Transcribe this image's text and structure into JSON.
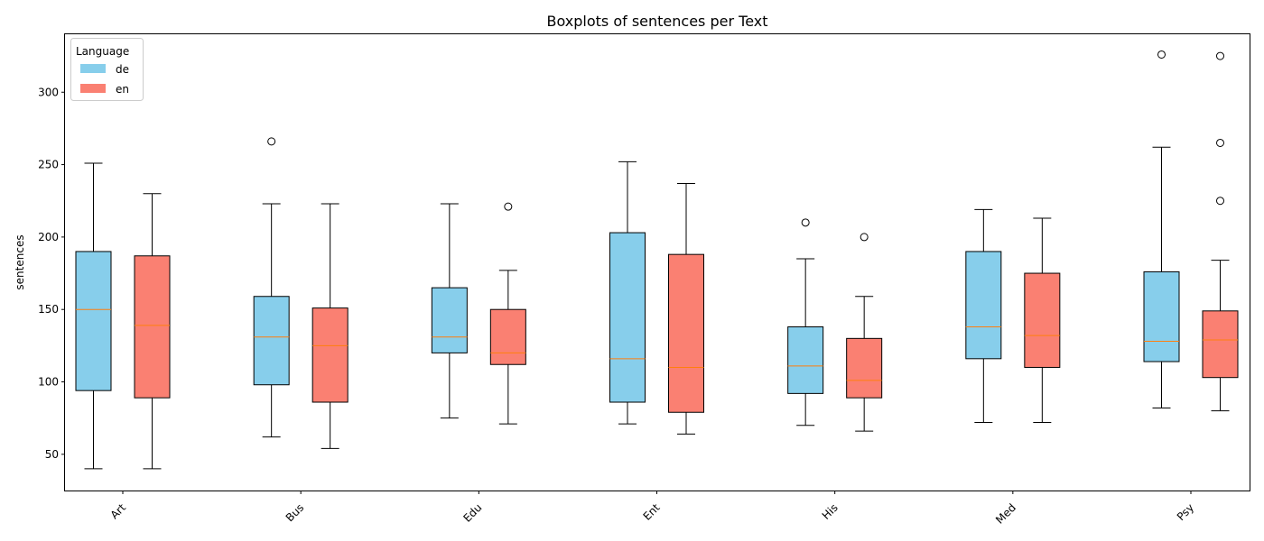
{
  "chart_data": {
    "type": "boxplot",
    "title": "Boxplots of sentences per Text",
    "xlabel": "",
    "ylabel": "sentences",
    "ylim": [
      25,
      340
    ],
    "yticks": [
      50,
      100,
      150,
      200,
      250,
      300
    ],
    "categories": [
      "Art",
      "Bus",
      "Edu",
      "Ent",
      "His",
      "Med",
      "Psy"
    ],
    "legend": {
      "title": "Language",
      "placement": "top-left"
    },
    "colors": {
      "de": "#87ceeb",
      "en": "#fa8072",
      "median": "#ff7f0e"
    },
    "grid": false,
    "series": [
      {
        "name": "de",
        "boxes": [
          {
            "whislo": 40,
            "q1": 94,
            "med": 150,
            "q3": 190,
            "whishi": 251,
            "fliers": []
          },
          {
            "whislo": 62,
            "q1": 98,
            "med": 131,
            "q3": 159,
            "whishi": 223,
            "fliers": [
              266
            ]
          },
          {
            "whislo": 75,
            "q1": 120,
            "med": 131,
            "q3": 165,
            "whishi": 223,
            "fliers": []
          },
          {
            "whislo": 71,
            "q1": 86,
            "med": 116,
            "q3": 203,
            "whishi": 252,
            "fliers": []
          },
          {
            "whislo": 70,
            "q1": 92,
            "med": 111,
            "q3": 138,
            "whishi": 185,
            "fliers": [
              210
            ]
          },
          {
            "whislo": 72,
            "q1": 116,
            "med": 138,
            "q3": 190,
            "whishi": 219,
            "fliers": []
          },
          {
            "whislo": 82,
            "q1": 114,
            "med": 128,
            "q3": 176,
            "whishi": 262,
            "fliers": [
              326
            ]
          }
        ]
      },
      {
        "name": "en",
        "boxes": [
          {
            "whislo": 40,
            "q1": 89,
            "med": 139,
            "q3": 187,
            "whishi": 230,
            "fliers": []
          },
          {
            "whislo": 54,
            "q1": 86,
            "med": 125,
            "q3": 151,
            "whishi": 223,
            "fliers": []
          },
          {
            "whislo": 71,
            "q1": 112,
            "med": 120,
            "q3": 150,
            "whishi": 177,
            "fliers": [
              221
            ]
          },
          {
            "whislo": 64,
            "q1": 79,
            "med": 110,
            "q3": 188,
            "whishi": 237,
            "fliers": []
          },
          {
            "whislo": 66,
            "q1": 89,
            "med": 101,
            "q3": 130,
            "whishi": 159,
            "fliers": [
              200
            ]
          },
          {
            "whislo": 72,
            "q1": 110,
            "med": 132,
            "q3": 175,
            "whishi": 213,
            "fliers": []
          },
          {
            "whislo": 80,
            "q1": 103,
            "med": 129,
            "q3": 149,
            "whishi": 184,
            "fliers": [
              225,
              265,
              325
            ]
          }
        ]
      }
    ]
  }
}
